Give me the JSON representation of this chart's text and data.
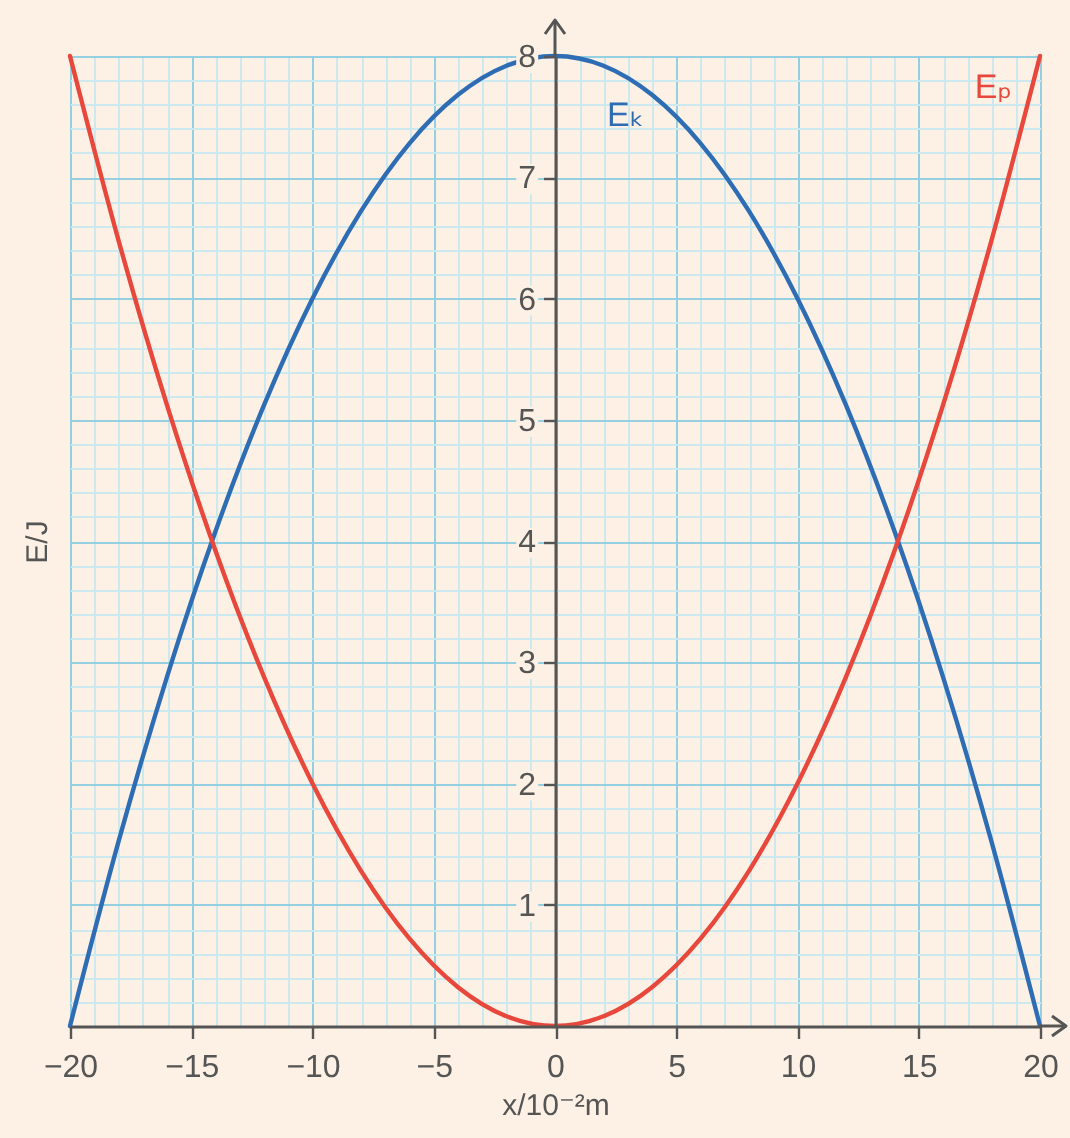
{
  "chart_data": {
    "type": "line",
    "xlabel": "x/10⁻²m",
    "ylabel": "E/J",
    "x": [
      -20,
      -18,
      -16,
      -14,
      -12,
      -10,
      -8,
      -6,
      -4,
      -2,
      0,
      2,
      4,
      6,
      8,
      10,
      12,
      14,
      16,
      18,
      20
    ],
    "series": [
      {
        "name": "Eₖ",
        "color": "#2e6db4",
        "values": [
          0,
          1.52,
          2.88,
          4.08,
          5.12,
          6,
          6.72,
          7.28,
          7.68,
          7.92,
          8,
          7.92,
          7.68,
          7.28,
          6.72,
          6,
          5.12,
          4.08,
          2.88,
          1.52,
          0
        ]
      },
      {
        "name": "Eₚ",
        "color": "#e8473c",
        "values": [
          8,
          6.48,
          5.12,
          3.92,
          2.88,
          2,
          1.28,
          0.72,
          0.32,
          0.08,
          0,
          0.08,
          0.32,
          0.72,
          1.28,
          2,
          2.88,
          3.92,
          5.12,
          6.48,
          8
        ]
      }
    ],
    "xlim": [
      -20,
      20
    ],
    "ylim": [
      0,
      8
    ],
    "xticks": [
      -20,
      {
        "value": -19,
        "label": null
      },
      {
        "value": -18,
        "label": null
      },
      {
        "value": -17,
        "label": null
      },
      {
        "value": -16,
        "label": null
      },
      -15,
      {
        "value": -14,
        "label": null
      },
      {
        "value": -13,
        "label": null
      },
      {
        "value": -12,
        "label": null
      },
      {
        "value": -11,
        "label": null
      },
      -10,
      {
        "value": -9,
        "label": null
      },
      {
        "value": -8,
        "label": null
      },
      {
        "value": -7,
        "label": null
      },
      {
        "value": -6,
        "label": null
      },
      -5,
      {
        "value": -4,
        "label": null
      },
      {
        "value": -3,
        "label": null
      },
      {
        "value": -2,
        "label": null
      },
      {
        "value": -1,
        "label": null
      },
      0,
      {
        "value": 1,
        "label": null
      },
      {
        "value": 2,
        "label": null
      },
      {
        "value": 3,
        "label": null
      },
      {
        "value": 4,
        "label": null
      },
      5,
      {
        "value": 6,
        "label": null
      },
      {
        "value": 7,
        "label": null
      },
      {
        "value": 8,
        "label": null
      },
      {
        "value": 9,
        "label": null
      },
      10,
      {
        "value": 11,
        "label": null
      },
      {
        "value": 12,
        "label": null
      },
      {
        "value": 13,
        "label": null
      },
      {
        "value": 14,
        "label": null
      },
      15,
      {
        "value": 16,
        "label": null
      },
      {
        "value": 17,
        "label": null
      },
      {
        "value": 18,
        "label": null
      },
      {
        "value": 19,
        "label": null
      },
      20
    ],
    "yticks": [
      {
        "value": 0.2,
        "label": null
      },
      {
        "value": 0.4,
        "label": null
      },
      {
        "value": 0.6,
        "label": null
      },
      {
        "value": 0.8,
        "label": null
      },
      1,
      {
        "value": 1.2,
        "label": null
      },
      {
        "value": 1.4,
        "label": null
      },
      {
        "value": 1.6,
        "label": null
      },
      {
        "value": 1.8,
        "label": null
      },
      2,
      {
        "value": 2.2,
        "label": null
      },
      {
        "value": 2.4,
        "label": null
      },
      {
        "value": 2.6,
        "label": null
      },
      {
        "value": 2.8,
        "label": null
      },
      3,
      {
        "value": 3.2,
        "label": null
      },
      {
        "value": 3.4,
        "label": null
      },
      {
        "value": 3.6,
        "label": null
      },
      {
        "value": 3.8,
        "label": null
      },
      4,
      {
        "value": 4.2,
        "label": null
      },
      {
        "value": 4.4,
        "label": null
      },
      {
        "value": 4.6,
        "label": null
      },
      {
        "value": 4.8,
        "label": null
      },
      5,
      {
        "value": 5.2,
        "label": null
      },
      {
        "value": 5.4,
        "label": null
      },
      {
        "value": 5.6,
        "label": null
      },
      {
        "value": 5.8,
        "label": null
      },
      6,
      {
        "value": 6.2,
        "label": null
      },
      {
        "value": 6.4,
        "label": null
      },
      {
        "value": 6.6,
        "label": null
      },
      {
        "value": 6.8,
        "label": null
      },
      7,
      {
        "value": 7.2,
        "label": null
      },
      {
        "value": 7.4,
        "label": null
      },
      {
        "value": 7.6,
        "label": null
      },
      {
        "value": 7.8,
        "label": null
      },
      8
    ],
    "grid": true,
    "legend": false,
    "marker": "none",
    "line_style": "solid"
  }
}
